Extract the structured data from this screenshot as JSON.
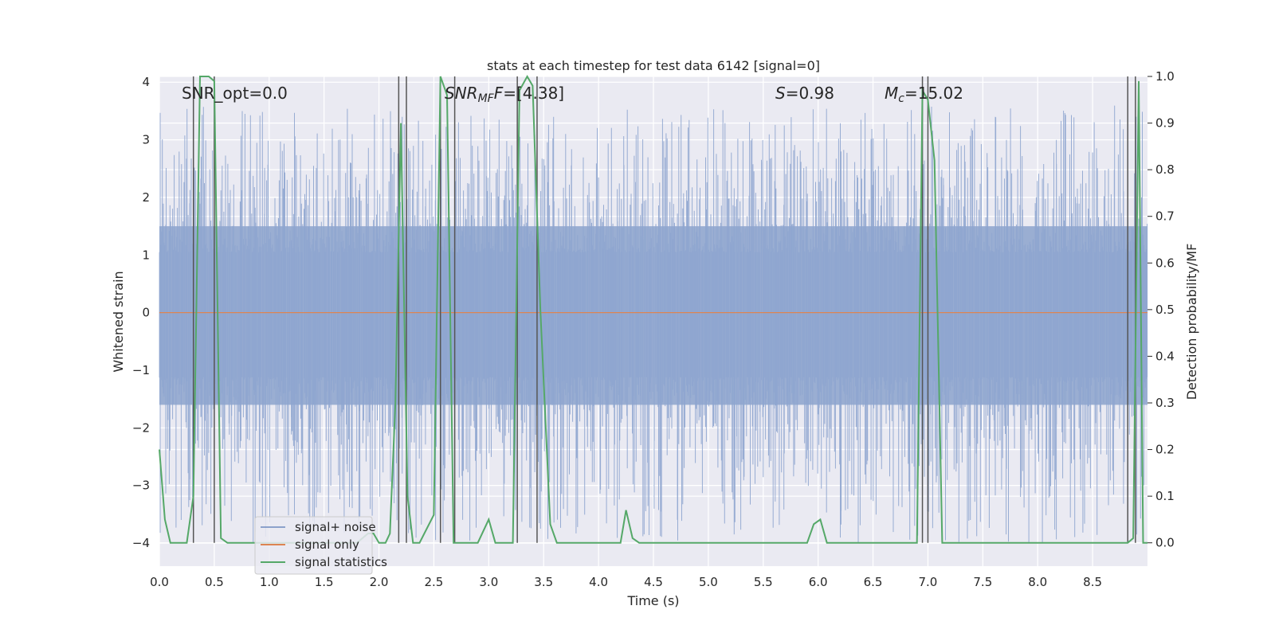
{
  "chart_data": {
    "type": "line",
    "title": "stats at each timestep for test data 6142 [signal=0]",
    "xlabel": "Time (s)",
    "ylabel_left": "Whitened strain",
    "ylabel_right": "Detection probability/MF",
    "xlim": [
      0.0,
      9.0
    ],
    "ylim_left": [
      -4.4,
      4.1
    ],
    "ylim_right": [
      -0.05,
      1.0
    ],
    "x_ticks": [
      "0.0",
      "0.5",
      "1.0",
      "1.5",
      "2.0",
      "2.5",
      "3.0",
      "3.5",
      "4.0",
      "4.5",
      "5.0",
      "5.5",
      "6.0",
      "6.5",
      "7.0",
      "7.5",
      "8.0",
      "8.5"
    ],
    "y_left_ticks": [
      "4",
      "3",
      "2",
      "1",
      "0",
      "−1",
      "−2",
      "−3",
      "−4"
    ],
    "y_right_ticks": [
      "1.0",
      "0.9",
      "0.8",
      "0.7",
      "0.6",
      "0.5",
      "0.4",
      "0.3",
      "0.2",
      "0.1",
      "0.0"
    ],
    "annotations": [
      {
        "text": "SNR_opt=0.0",
        "x": 0.2
      },
      {
        "text": "SNR",
        "sub": "MF",
        "tail": "F=[4.38]",
        "x": 2.6
      },
      {
        "text": "S",
        "tail": "=0.98",
        "x": 5.6
      },
      {
        "text": "M",
        "sub": "c",
        "tail": "=15.02",
        "x": 6.6
      }
    ],
    "noise_band": {
      "typical_min": -1.6,
      "typical_max": 1.5,
      "peak_min": -4.0,
      "peak_max": 3.6
    },
    "vertical_lines": [
      0.31,
      0.5,
      2.18,
      2.25,
      2.56,
      2.69,
      3.26,
      3.44,
      6.95,
      7.0,
      8.82,
      8.89
    ],
    "series": [
      {
        "name": "signal+ noise",
        "color": "#4c72b0"
      },
      {
        "name": "signal only",
        "color": "#dd8452",
        "x": [
          0.0,
          9.0
        ],
        "y": [
          0.0,
          0.0
        ]
      },
      {
        "name": "signal statistics",
        "color": "#55a868",
        "x": [
          0.0,
          0.05,
          0.1,
          0.2,
          0.25,
          0.31,
          0.37,
          0.45,
          0.5,
          0.56,
          0.62,
          0.7,
          1.0,
          1.5,
          1.8,
          1.9,
          1.95,
          2.0,
          2.06,
          2.1,
          2.15,
          2.2,
          2.26,
          2.31,
          2.37,
          2.5,
          2.56,
          2.62,
          2.68,
          2.75,
          2.9,
          3.0,
          3.06,
          3.15,
          3.22,
          3.28,
          3.35,
          3.4,
          3.47,
          3.56,
          3.62,
          3.7,
          4.0,
          4.2,
          4.25,
          4.31,
          4.37,
          5.0,
          5.9,
          5.96,
          6.02,
          6.08,
          6.5,
          6.9,
          6.95,
          7.0,
          7.06,
          7.13,
          7.5,
          8.5,
          8.82,
          8.87,
          8.92,
          8.96,
          9.0
        ],
        "y": [
          0.2,
          0.05,
          0.0,
          0.0,
          0.0,
          0.1,
          1.0,
          1.0,
          0.99,
          0.01,
          0.0,
          0.0,
          0.0,
          0.0,
          0.0,
          0.02,
          0.02,
          0.0,
          0.0,
          0.02,
          0.3,
          0.9,
          0.1,
          0.0,
          0.0,
          0.06,
          1.0,
          0.96,
          0.0,
          0.0,
          0.0,
          0.05,
          0.0,
          0.0,
          0.0,
          0.97,
          1.0,
          0.98,
          0.5,
          0.04,
          0.0,
          0.0,
          0.0,
          0.0,
          0.07,
          0.01,
          0.0,
          0.0,
          0.0,
          0.04,
          0.05,
          0.0,
          0.0,
          0.0,
          0.97,
          0.95,
          0.82,
          0.0,
          0.0,
          0.0,
          0.0,
          0.01,
          0.99,
          0.0,
          0.0
        ]
      }
    ],
    "legend": {
      "position": "lower-left",
      "entries": [
        "signal+ noise",
        "signal only",
        "signal statistics"
      ]
    },
    "grid": true
  }
}
